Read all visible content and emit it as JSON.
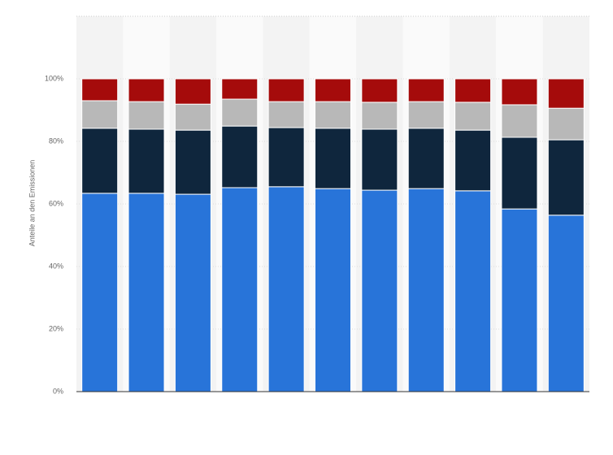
{
  "chart_data": {
    "type": "stacked-bar",
    "y_label": "Anteile an den Emissionen",
    "categories": [
      null,
      null,
      null,
      null,
      null,
      null,
      null,
      null,
      null,
      null,
      null
    ],
    "series": [
      {
        "color": "#2874d9",
        "values": [
          63.4,
          63.4,
          63.1,
          65.2,
          65.5,
          64.9,
          64.4,
          64.9,
          64.2,
          58.4,
          56.4
        ]
      },
      {
        "color": "#0f263d",
        "values": [
          20.8,
          20.5,
          20.5,
          19.7,
          18.9,
          19.3,
          19.5,
          19.3,
          19.4,
          22.9,
          24.1
        ]
      },
      {
        "color": "#b8b8b8",
        "values": [
          8.8,
          8.8,
          8.3,
          8.6,
          8.3,
          8.5,
          8.6,
          8.5,
          8.9,
          10.4,
          10.1
        ]
      },
      {
        "color": "#a50b0b",
        "values": [
          7.0,
          7.3,
          8.1,
          6.5,
          7.3,
          7.3,
          7.5,
          7.3,
          7.5,
          8.3,
          9.4
        ]
      }
    ],
    "ylim": [
      0,
      120
    ],
    "yticks": [
      {
        "value": 0,
        "label": "0%"
      },
      {
        "value": 20,
        "label": "20%"
      },
      {
        "value": 40,
        "label": "40%"
      },
      {
        "value": 60,
        "label": "60%"
      },
      {
        "value": 80,
        "label": "80%"
      },
      {
        "value": 100,
        "label": "100%"
      }
    ],
    "grid": true
  }
}
